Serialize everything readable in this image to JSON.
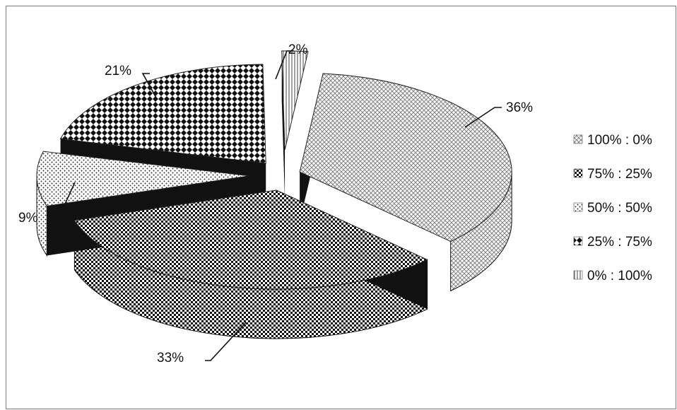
{
  "chart_data": {
    "type": "pie",
    "style": "3d-exploded",
    "series": [
      {
        "name": "100% : 0%",
        "value": 36,
        "label": "36%",
        "pattern": "diag-cross-light"
      },
      {
        "name": "75% : 25%",
        "value": 33,
        "label": "33%",
        "pattern": "checker-dense"
      },
      {
        "name": "50% : 50%",
        "value": 9,
        "label": "9%",
        "pattern": "dots-sparse"
      },
      {
        "name": "25% : 75%",
        "value": 21,
        "label": "21%",
        "pattern": "checker-diamond"
      },
      {
        "name": "0% : 100%",
        "value": 2,
        "label": "2%",
        "pattern": "vertical-hatch"
      }
    ],
    "legend_position": "right",
    "grid": false
  }
}
